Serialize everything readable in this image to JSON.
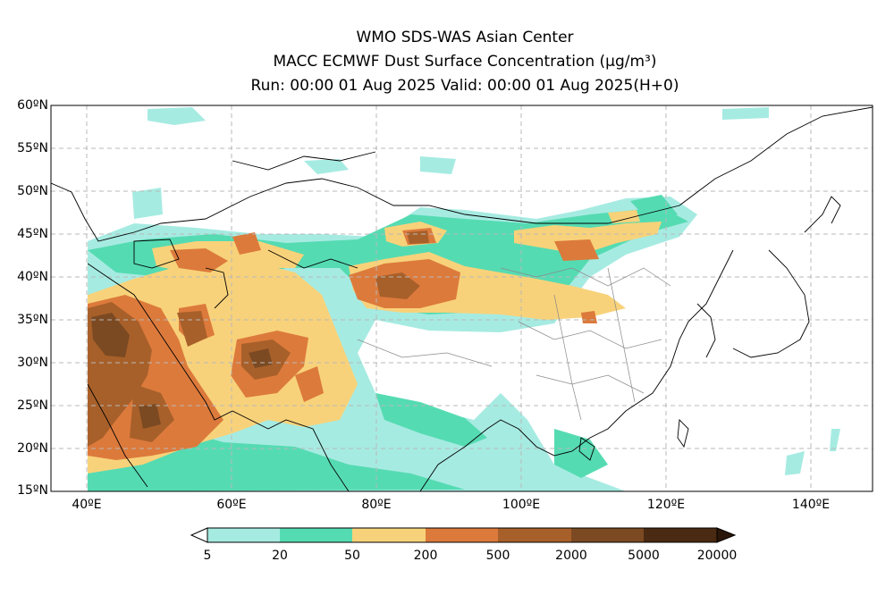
{
  "title": {
    "line1": "WMO SDS-WAS Asian Center",
    "line2": "MACC ECMWF Dust Surface Concentration (μg/m³)",
    "line3": "Run: 00:00 01 Aug 2025    Valid: 00:00 01 Aug 2025(H+0)"
  },
  "axes": {
    "lat_labels": [
      "60ºN",
      "55ºN",
      "50ºN",
      "45ºN",
      "40ºN",
      "35ºN",
      "30ºN",
      "25ºN",
      "20ºN",
      "15ºN"
    ],
    "lon_labels": [
      "40ºE",
      "60ºE",
      "80ºE",
      "100ºE",
      "120ºE",
      "140ºE"
    ]
  },
  "colorbar": {
    "colors": [
      "#a6ebe2",
      "#55dbb2",
      "#f8d27a",
      "#dc7a3c",
      "#a8602a",
      "#7b4a22",
      "#4a2a12"
    ],
    "labels": [
      "5",
      "20",
      "50",
      "200",
      "500",
      "2000",
      "5000",
      "20000"
    ]
  }
}
